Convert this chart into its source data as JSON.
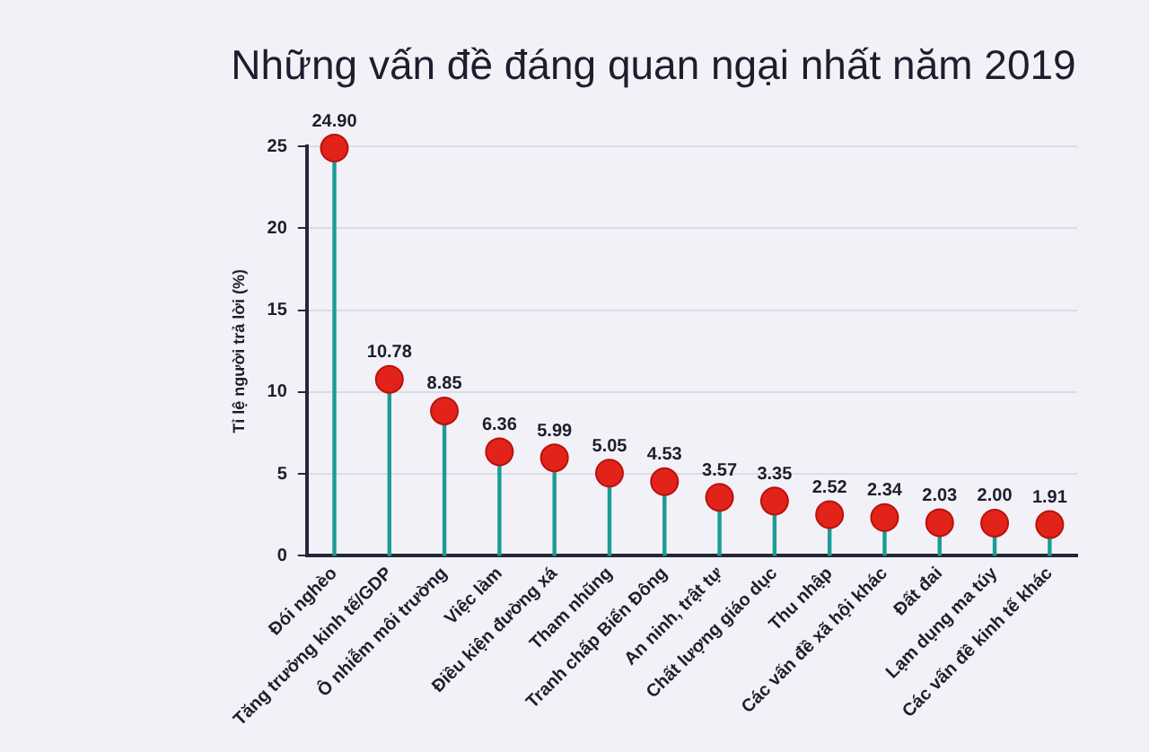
{
  "chart_data": {
    "type": "lollipop",
    "title": "Những vấn đề đáng quan ngại nhất năm 2019",
    "ylabel": "Tỉ lệ người trả lời (%)",
    "categories": [
      "Đói nghèo",
      "Tăng trưởng kinh tế/GDP",
      "Ô nhiễm môi trường",
      "Việc làm",
      "Điều kiện đường xá",
      "Tham nhũng",
      "Tranh chấp Biển Đông",
      "An ninh, trật tự",
      "Chất lượng giáo dục",
      "Thu nhập",
      "Các vấn đề xã hội khác",
      "Đất đai",
      "Lạm dụng ma túy",
      "Các vấn đề kinh tế khác"
    ],
    "values": [
      24.9,
      10.78,
      8.85,
      6.36,
      5.99,
      5.05,
      4.53,
      3.57,
      3.35,
      2.52,
      2.34,
      2.03,
      2.0,
      1.91
    ],
    "value_labels": [
      "24.90",
      "10.78",
      "8.85",
      "6.36",
      "5.99",
      "5.05",
      "4.53",
      "3.57",
      "3.35",
      "2.52",
      "2.34",
      "2.03",
      "2.00",
      "1.91"
    ],
    "color": "#e2231a",
    "ylim": [
      0,
      25
    ],
    "yticks": [
      0,
      5,
      10,
      15,
      20,
      25
    ],
    "grid": "y",
    "marker": "circle"
  }
}
